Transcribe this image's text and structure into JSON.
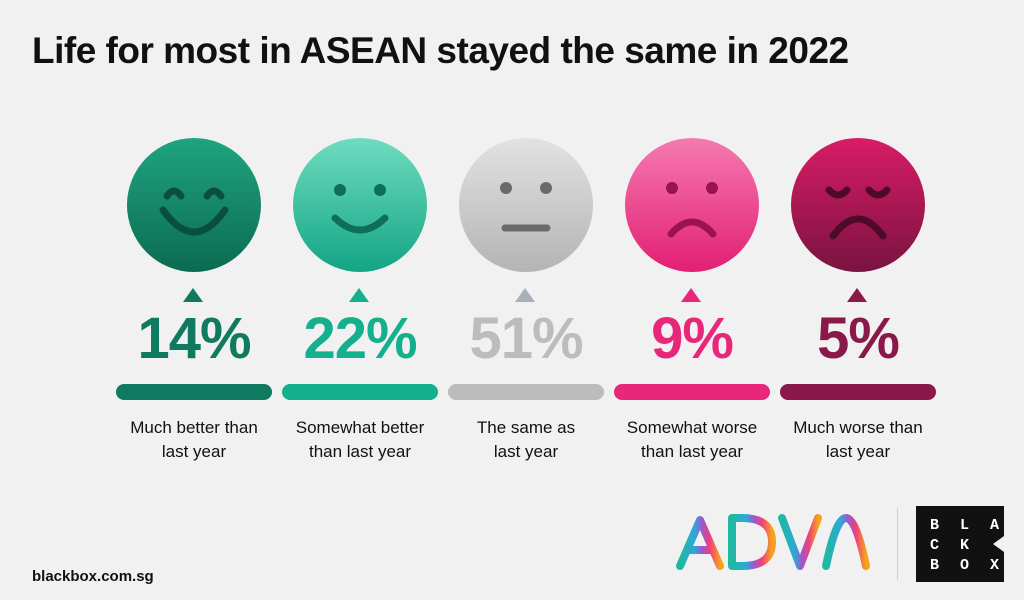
{
  "title": "Life for most in ASEAN stayed the same in 2022",
  "chart_data": {
    "type": "bar",
    "categories": [
      "Much better than last year",
      "Somewhat better than last year",
      "The same as last year",
      "Somewhat worse than last year",
      "Much worse than last year"
    ],
    "values": [
      14,
      22,
      51,
      9,
      5
    ],
    "unit": "%",
    "items": [
      {
        "pct_text": "14%",
        "label_line1": "Much better than",
        "label_line2": "last year",
        "face": "very-happy-face-icon",
        "color": "#0f7a5f",
        "face_top": "#1fa47f",
        "face_bottom": "#0c6b52",
        "feature": "#0a4f3d"
      },
      {
        "pct_text": "22%",
        "label_line1": "Somewhat better",
        "label_line2": "than last year",
        "face": "happy-face-icon",
        "color": "#14b08e",
        "face_top": "#6fdcc0",
        "face_bottom": "#13a584",
        "feature": "#0e6e57"
      },
      {
        "pct_text": "51%",
        "label_line1": "The same as",
        "label_line2": "last year",
        "face": "neutral-face-icon",
        "color": "#bcbcbc",
        "face_top": "#e2e2e2",
        "face_bottom": "#b4b4b4",
        "feature": "#6a6a6a",
        "arrow_color": "#a9afbb"
      },
      {
        "pct_text": "9%",
        "label_line1": "Somewhat worse",
        "label_line2": "than last year",
        "face": "sad-face-icon",
        "color": "#e8267a",
        "face_top": "#f57ab0",
        "face_bottom": "#e21f73",
        "feature": "#9a1250"
      },
      {
        "pct_text": "5%",
        "label_line1": "Much worse than",
        "label_line2": "last year",
        "face": "very-sad-face-icon",
        "color": "#8a1848",
        "face_top": "#d81c66",
        "face_bottom": "#7a1340",
        "feature": "#4d0b28"
      }
    ]
  },
  "footer": {
    "url": "blackbox.com.sg",
    "logo_text": "ADVA",
    "brand_lines": [
      "B L A",
      "C K",
      "B O X"
    ]
  }
}
